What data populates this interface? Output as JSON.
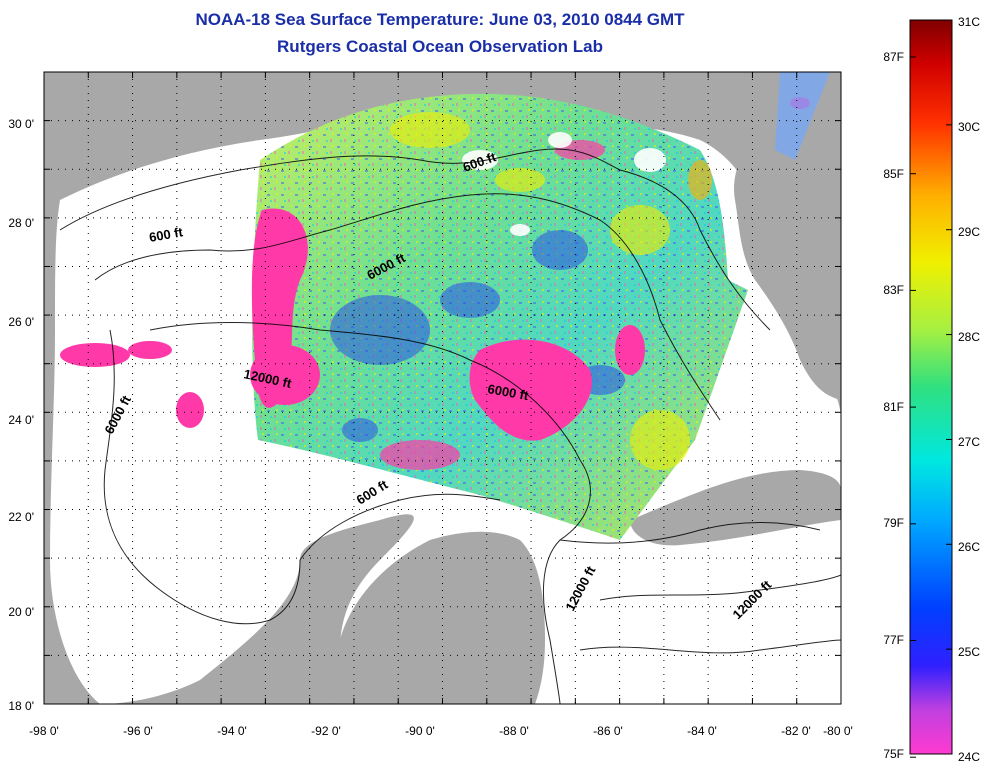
{
  "title": "NOAA-18 Sea Surface Temperature:  June 03, 2010 0844 GMT",
  "subtitle": "Rutgers Coastal Ocean Observation Lab",
  "lat_labels": [
    "30 0'",
    "28 0'",
    "26 0'",
    "24 0'",
    "22 0'",
    "20 0'",
    "18 0'"
  ],
  "lon_labels": [
    "-98 0'",
    "-96 0'",
    "-94 0'",
    "-92 0'",
    "-90 0'",
    "-88 0'",
    "-86 0'",
    "-84 0'",
    "-82 0'",
    "-80 0'"
  ],
  "isobath_labels": [
    "600 ft",
    "600 ft",
    "600 ft",
    "6000 ft",
    "6000 ft",
    "6000 ft",
    "12000 ft",
    "12000 ft",
    "12000 ft"
  ],
  "colorbar": {
    "celsius_labels": [
      "31C",
      "30C",
      "29C",
      "28C",
      "27C",
      "26C",
      "25C",
      "24C"
    ],
    "fahrenheit_labels": [
      "87F",
      "85F",
      "83F",
      "81F",
      "79F",
      "77F",
      "75F"
    ],
    "min_c": 24,
    "max_c": 31
  },
  "colors": {
    "title": "#1a2ea8",
    "land": "#a8a8a8",
    "no_data": "#ffffff",
    "cold_anomaly": "#ff3aa8"
  }
}
